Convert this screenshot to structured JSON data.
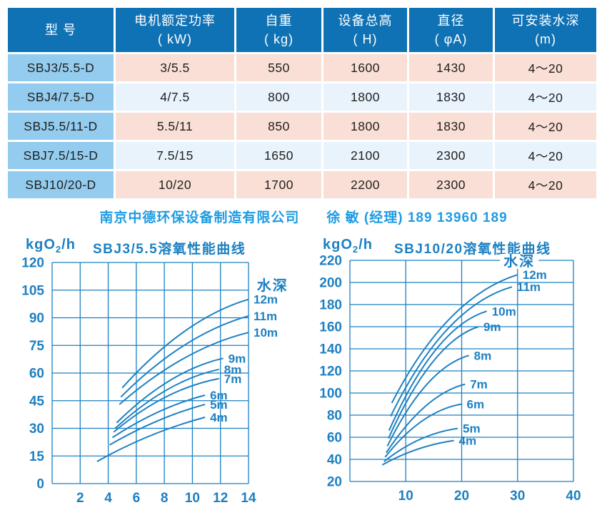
{
  "table": {
    "headers": [
      "型  号",
      "电机额定功率\n( kW)",
      "自重\n( kg)",
      "设备总高\n( H)",
      "直径\n( φA)",
      "可安装水深\n(m)"
    ],
    "rows": [
      [
        "SBJ3/5.5-D",
        "3/5.5",
        "550",
        "1600",
        "1430",
        "4～20"
      ],
      [
        "SBJ4/7.5-D",
        "4/7.5",
        "800",
        "1800",
        "1830",
        "4～20"
      ],
      [
        "SBJ5.5/11-D",
        "5.5/11",
        "850",
        "1800",
        "1830",
        "4～20"
      ],
      [
        "SBJ7.5/15-D",
        "7.5/15",
        "1650",
        "2100",
        "2300",
        "4～20"
      ],
      [
        "SBJ10/20-D",
        "10/20",
        "1700",
        "2200",
        "2300",
        "4～20"
      ]
    ]
  },
  "contact": {
    "company": "南京中德环保设备制造有限公司",
    "person": "徐 敏 (经理) 189 13960 189"
  },
  "colors": {
    "header_blue": "#0f72b5",
    "model_cell_blue": "#93ccee",
    "row_pink": "#f9dfd5",
    "row_pale_blue": "#e8f3fb",
    "contact_blue": "#1e9ce2",
    "chart_blue": "#1d80c2"
  },
  "chart_data": [
    {
      "type": "line",
      "title": "SBJ3/5.5溶氧性能曲线",
      "ylabel": {
        "prefix": "kgO",
        "sub": "2",
        "suffix": "/h"
      },
      "legend": {
        "text": "水深",
        "x": 14.6,
        "y": 108,
        "bg": false
      },
      "xlim": [
        0,
        14
      ],
      "ylim": [
        0,
        120
      ],
      "xstep": 2,
      "ystep": 15,
      "xticks": [
        2,
        4,
        6,
        8,
        10,
        12,
        14
      ],
      "yticks": [
        0,
        15,
        30,
        45,
        60,
        75,
        90,
        105,
        120
      ],
      "grid": true,
      "legend_position": "top-right",
      "series": [
        {
          "name": "12m",
          "points": [
            [
              5.0,
              52
            ],
            [
              9.5,
              83
            ],
            [
              14,
              100
            ]
          ]
        },
        {
          "name": "11m",
          "points": [
            [
              4.9,
              47
            ],
            [
              9.4,
              75
            ],
            [
              14,
              91
            ]
          ]
        },
        {
          "name": "10m",
          "points": [
            [
              4.8,
              43
            ],
            [
              9.4,
              68
            ],
            [
              14,
              82
            ]
          ]
        },
        {
          "name": "9m",
          "points": [
            [
              4.6,
              33
            ],
            [
              8.4,
              56
            ],
            [
              12.2,
              68
            ]
          ]
        },
        {
          "name": "8m",
          "points": [
            [
              4.5,
              30
            ],
            [
              8.2,
              51
            ],
            [
              11.9,
              62
            ]
          ]
        },
        {
          "name": "7m",
          "points": [
            [
              4.4,
              28
            ],
            [
              8.1,
              47
            ],
            [
              11.9,
              57
            ]
          ]
        },
        {
          "name": "6m",
          "points": [
            [
              4.3,
              25
            ],
            [
              7.6,
              39
            ],
            [
              10.9,
              48
            ]
          ]
        },
        {
          "name": "5m",
          "points": [
            [
              4.1,
              21
            ],
            [
              7.5,
              34
            ],
            [
              10.9,
              43
            ]
          ]
        },
        {
          "name": "4m",
          "points": [
            [
              3.2,
              12
            ],
            [
              7.0,
              26
            ],
            [
              10.9,
              36
            ]
          ]
        }
      ]
    },
    {
      "type": "line",
      "title": "SBJ10/20溶氧性能曲线",
      "ylabel": {
        "prefix": "kgO",
        "sub": "2",
        "suffix": "/h"
      },
      "legend": {
        "text": "水深",
        "x": 30.3,
        "y": 220,
        "bg": true
      },
      "xlim": [
        0,
        40
      ],
      "ylim": [
        20,
        220
      ],
      "xstep": 10,
      "ystep": 20,
      "xticks": [
        10,
        20,
        30,
        40
      ],
      "yticks": [
        20,
        40,
        60,
        80,
        100,
        120,
        140,
        160,
        180,
        200,
        220
      ],
      "grid": true,
      "legend_position": "top-right",
      "series": [
        {
          "name": "12m",
          "points": [
            [
              7.5,
              91
            ],
            [
              18,
              168
            ],
            [
              30,
              207
            ]
          ]
        },
        {
          "name": "11m",
          "points": [
            [
              7.3,
              79
            ],
            [
              17.5,
              158
            ],
            [
              29,
              196
            ]
          ]
        },
        {
          "name": "10m",
          "points": [
            [
              7.0,
              66
            ],
            [
              15.5,
              140
            ],
            [
              24.5,
              174
            ]
          ]
        },
        {
          "name": "9m",
          "points": [
            [
              6.9,
              59
            ],
            [
              14.8,
              128
            ],
            [
              23,
              160
            ]
          ]
        },
        {
          "name": "8m",
          "points": [
            [
              6.7,
              52
            ],
            [
              13.8,
              108
            ],
            [
              21.3,
              134
            ]
          ]
        },
        {
          "name": "7m",
          "points": [
            [
              6.5,
              46
            ],
            [
              13.5,
              88
            ],
            [
              20.6,
              108
            ]
          ]
        },
        {
          "name": "6m",
          "points": [
            [
              6.3,
              42
            ],
            [
              13.0,
              75
            ],
            [
              20,
              90
            ]
          ]
        },
        {
          "name": "5m",
          "points": [
            [
              6.1,
              38
            ],
            [
              12.5,
              58
            ],
            [
              19.3,
              68
            ]
          ]
        },
        {
          "name": "4m",
          "points": [
            [
              5.8,
              35
            ],
            [
              12.0,
              49
            ],
            [
              18.6,
              57
            ]
          ]
        }
      ]
    }
  ]
}
